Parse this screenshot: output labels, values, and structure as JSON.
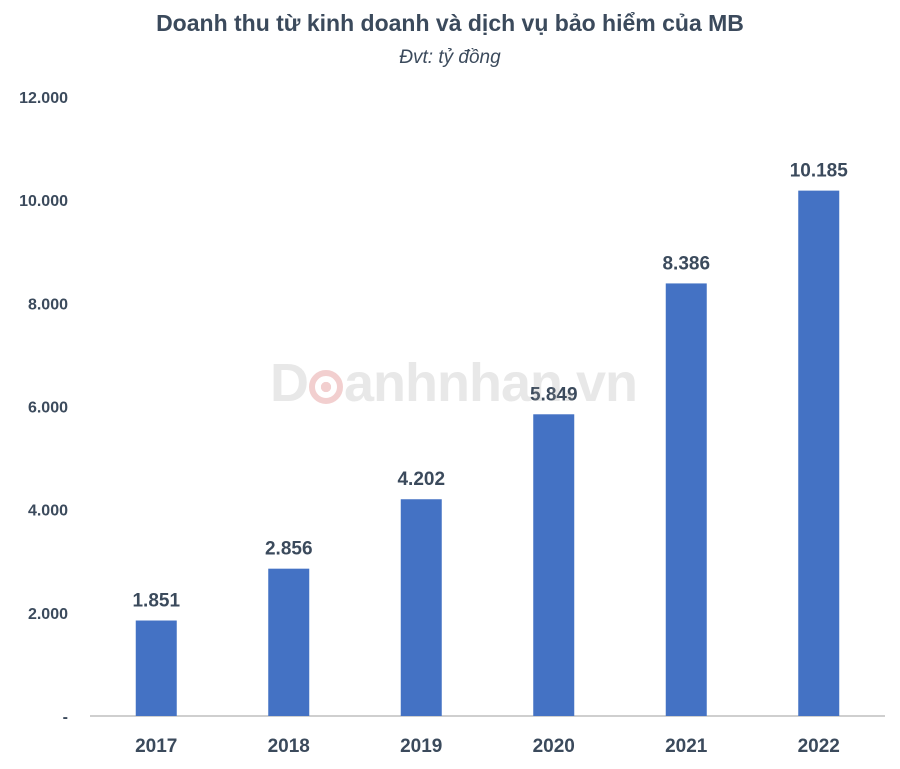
{
  "colors": {
    "bar": "#4472c4",
    "text": "#3b4a5c",
    "axis": "#bfbfbf",
    "watermark_gray": "#999999",
    "watermark_red": "#c92a2a"
  },
  "watermark": {
    "text_before": "D",
    "text_after": "anhnhan.vn"
  },
  "chart_data": {
    "type": "bar",
    "title": "Doanh thu từ kinh doanh và dịch vụ bảo hiểm của MB",
    "subtitle": "Đvt: tỷ đồng",
    "categories": [
      "2017",
      "2018",
      "2019",
      "2020",
      "2021",
      "2022"
    ],
    "values": [
      1851,
      2856,
      4202,
      5849,
      8386,
      10185
    ],
    "value_labels": [
      "1.851",
      "2.856",
      "4.202",
      "5.849",
      "8.386",
      "10.185"
    ],
    "ylim": [
      0,
      12000
    ],
    "yticks": [
      0,
      2000,
      4000,
      6000,
      8000,
      10000,
      12000
    ],
    "ytick_labels": [
      "-",
      "2.000",
      "4.000",
      "6.000",
      "8.000",
      "10.000",
      "12.000"
    ],
    "grid": false,
    "legend": "none",
    "xlabel": "",
    "ylabel": ""
  }
}
